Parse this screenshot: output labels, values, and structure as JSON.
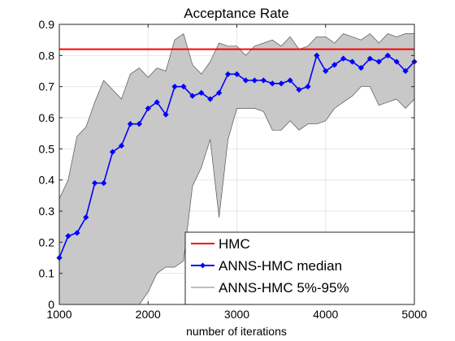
{
  "chart_data": {
    "type": "line",
    "title": "Acceptance Rate",
    "xlabel": "number of iterations",
    "ylabel": "",
    "xlim": [
      1000,
      5000
    ],
    "ylim": [
      0,
      0.9
    ],
    "xticks": [
      "1000",
      "2000",
      "3000",
      "4000",
      "5000"
    ],
    "yticks": [
      "0",
      "0.1",
      "0.2",
      "0.3",
      "0.4",
      "0.5",
      "0.6",
      "0.7",
      "0.8",
      "0.9"
    ],
    "grid": true,
    "legend_position": "bottom-right",
    "colors": {
      "hmc": "#ff0000",
      "median": "#0000ff",
      "band_fill": "#c8c8c8",
      "band_edge": "#555555"
    },
    "series": [
      {
        "name": "HMC",
        "kind": "hline",
        "y": 0.82
      },
      {
        "name": "ANNS-HMC median",
        "kind": "line-markers",
        "x": [
          1000,
          1100,
          1200,
          1300,
          1400,
          1500,
          1600,
          1700,
          1800,
          1900,
          2000,
          2100,
          2200,
          2300,
          2400,
          2500,
          2600,
          2700,
          2800,
          2900,
          3000,
          3100,
          3200,
          3300,
          3400,
          3500,
          3600,
          3700,
          3800,
          3900,
          4000,
          4100,
          4200,
          4300,
          4400,
          4500,
          4600,
          4700,
          4800,
          4900,
          5000
        ],
        "y": [
          0.15,
          0.22,
          0.23,
          0.28,
          0.39,
          0.39,
          0.49,
          0.51,
          0.58,
          0.58,
          0.63,
          0.65,
          0.61,
          0.7,
          0.7,
          0.67,
          0.68,
          0.66,
          0.68,
          0.74,
          0.74,
          0.72,
          0.72,
          0.72,
          0.71,
          0.71,
          0.72,
          0.69,
          0.7,
          0.8,
          0.75,
          0.77,
          0.79,
          0.78,
          0.76,
          0.79,
          0.78,
          0.8,
          0.78,
          0.75,
          0.78
        ]
      },
      {
        "name": "ANNS-HMC 5%-95%",
        "kind": "band",
        "x": [
          1000,
          1100,
          1200,
          1300,
          1400,
          1500,
          1600,
          1700,
          1800,
          1900,
          2000,
          2100,
          2200,
          2300,
          2400,
          2500,
          2600,
          2700,
          2800,
          2900,
          3000,
          3100,
          3200,
          3300,
          3400,
          3500,
          3600,
          3700,
          3800,
          3900,
          4000,
          4100,
          4200,
          4300,
          4400,
          4500,
          4600,
          4700,
          4800,
          4900,
          5000
        ],
        "upper": [
          0.34,
          0.4,
          0.54,
          0.57,
          0.65,
          0.72,
          0.69,
          0.66,
          0.74,
          0.76,
          0.73,
          0.76,
          0.75,
          0.85,
          0.87,
          0.77,
          0.74,
          0.78,
          0.84,
          0.83,
          0.83,
          0.8,
          0.83,
          0.84,
          0.85,
          0.83,
          0.86,
          0.82,
          0.83,
          0.86,
          0.86,
          0.84,
          0.87,
          0.86,
          0.85,
          0.87,
          0.84,
          0.87,
          0.86,
          0.87,
          0.87
        ],
        "lower": [
          0.0,
          0.0,
          0.0,
          0.0,
          0.0,
          0.0,
          0.0,
          0.0,
          0.0,
          0.0,
          0.04,
          0.1,
          0.12,
          0.12,
          0.14,
          0.38,
          0.44,
          0.53,
          0.28,
          0.53,
          0.63,
          0.63,
          0.63,
          0.62,
          0.56,
          0.56,
          0.59,
          0.56,
          0.58,
          0.58,
          0.59,
          0.63,
          0.65,
          0.67,
          0.7,
          0.7,
          0.64,
          0.65,
          0.66,
          0.63,
          0.66
        ]
      }
    ]
  }
}
